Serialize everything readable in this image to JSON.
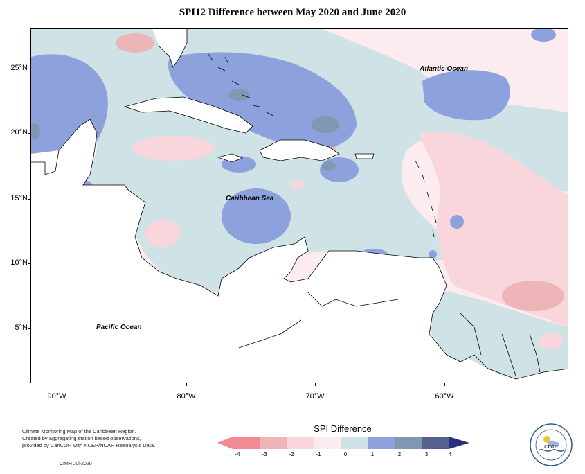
{
  "title": "SPI12 Difference between May 2020 and June 2020",
  "map": {
    "lat_labels": [
      "25°N",
      "20°N",
      "15°N",
      "10°N",
      "5°N"
    ],
    "lon_labels": [
      "90°W",
      "80°W",
      "70°W",
      "60°W"
    ],
    "labels": {
      "atlantic": "Atlantic Ocean",
      "caribbean": "Caribbean Sea",
      "pacific": "Pacific Ocean"
    }
  },
  "credit": {
    "lines": [
      "Climate Monitoring Map of the Caribbean Region.",
      "Created by aggregating station based observations,",
      "provided by CariCOF, with NCEP/NCAR Reanalysis Data."
    ],
    "stamp": "CIMH Jul-2020"
  },
  "legend": {
    "title": "SPI Difference",
    "ticks": [
      "-4",
      "-3",
      "-2",
      "-1",
      "0",
      "1",
      "2",
      "3",
      "4"
    ],
    "colors": [
      "#f08a93",
      "#edb5b8",
      "#f8d6dc",
      "#fdecef",
      "#cfe2e6",
      "#8da1dc",
      "#7f99b3",
      "#56618f",
      "#2b2d7a"
    ]
  },
  "logo": {
    "text": "CIMH"
  }
}
